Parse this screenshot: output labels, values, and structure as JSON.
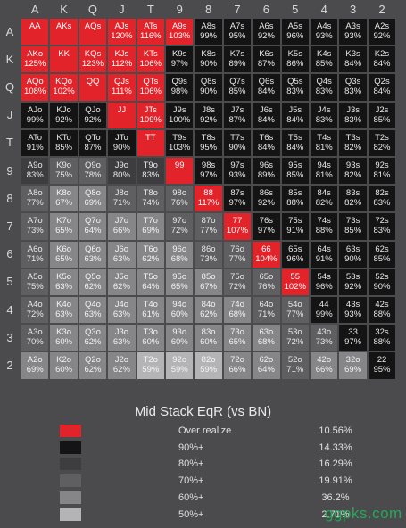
{
  "chart_data": {
    "type": "heatmap",
    "title": "Mid Stack EqR (vs BN)",
    "ranks": [
      "A",
      "K",
      "Q",
      "J",
      "T",
      "9",
      "8",
      "7",
      "6",
      "5",
      "4",
      "3",
      "2"
    ],
    "cells": [
      [
        [
          "AA",
          "",
          0
        ],
        [
          "AKs",
          "",
          0
        ],
        [
          "AQs",
          "",
          0
        ],
        [
          "AJs",
          "120%",
          0
        ],
        [
          "ATs",
          "116%",
          0
        ],
        [
          "A9s",
          "103%",
          0
        ],
        [
          "A8s",
          "99%",
          1
        ],
        [
          "A7s",
          "95%",
          1
        ],
        [
          "A6s",
          "92%",
          1
        ],
        [
          "A5s",
          "96%",
          1
        ],
        [
          "A4s",
          "93%",
          1
        ],
        [
          "A3s",
          "93%",
          1
        ],
        [
          "A2s",
          "92%",
          1
        ]
      ],
      [
        [
          "AKo",
          "125%",
          0
        ],
        [
          "KK",
          "",
          0
        ],
        [
          "KQs",
          "123%",
          0
        ],
        [
          "KJs",
          "112%",
          0
        ],
        [
          "KTs",
          "106%",
          0
        ],
        [
          "K9s",
          "97%",
          1
        ],
        [
          "K8s",
          "90%",
          1
        ],
        [
          "K7s",
          "89%",
          1
        ],
        [
          "K6s",
          "87%",
          1
        ],
        [
          "K5s",
          "86%",
          1
        ],
        [
          "K4s",
          "85%",
          1
        ],
        [
          "K3s",
          "84%",
          1
        ],
        [
          "K2s",
          "84%",
          1
        ]
      ],
      [
        [
          "AQo",
          "108%",
          0
        ],
        [
          "KQo",
          "102%",
          0
        ],
        [
          "QQ",
          "",
          0
        ],
        [
          "QJs",
          "111%",
          0
        ],
        [
          "QTs",
          "106%",
          0
        ],
        [
          "Q9s",
          "98%",
          1
        ],
        [
          "Q8s",
          "90%",
          1
        ],
        [
          "Q7s",
          "85%",
          1
        ],
        [
          "Q6s",
          "84%",
          1
        ],
        [
          "Q5s",
          "83%",
          1
        ],
        [
          "Q4s",
          "83%",
          1
        ],
        [
          "Q3s",
          "83%",
          1
        ],
        [
          "Q2s",
          "84%",
          1
        ]
      ],
      [
        [
          "AJo",
          "99%",
          1
        ],
        [
          "KJo",
          "92%",
          1
        ],
        [
          "QJo",
          "92%",
          1
        ],
        [
          "JJ",
          "",
          0
        ],
        [
          "JTs",
          "109%",
          0
        ],
        [
          "J9s",
          "100%",
          1
        ],
        [
          "J8s",
          "92%",
          1
        ],
        [
          "J7s",
          "87%",
          1
        ],
        [
          "J6s",
          "84%",
          1
        ],
        [
          "J5s",
          "84%",
          1
        ],
        [
          "J4s",
          "83%",
          1
        ],
        [
          "J3s",
          "83%",
          1
        ],
        [
          "J2s",
          "85%",
          1
        ]
      ],
      [
        [
          "ATo",
          "91%",
          1
        ],
        [
          "KTo",
          "85%",
          1
        ],
        [
          "QTo",
          "87%",
          1
        ],
        [
          "JTo",
          "90%",
          1
        ],
        [
          "TT",
          "",
          0
        ],
        [
          "T9s",
          "103%",
          1
        ],
        [
          "T8s",
          "95%",
          1
        ],
        [
          "T7s",
          "90%",
          1
        ],
        [
          "T6s",
          "84%",
          1
        ],
        [
          "T5s",
          "84%",
          1
        ],
        [
          "T4s",
          "81%",
          1
        ],
        [
          "T3s",
          "82%",
          1
        ],
        [
          "T2s",
          "82%",
          1
        ]
      ],
      [
        [
          "A9o",
          "83%",
          2
        ],
        [
          "K9o",
          "75%",
          3
        ],
        [
          "Q9o",
          "78%",
          3
        ],
        [
          "J9o",
          "80%",
          2
        ],
        [
          "T9o",
          "83%",
          2
        ],
        [
          "99",
          "",
          0
        ],
        [
          "98s",
          "97%",
          1
        ],
        [
          "97s",
          "93%",
          1
        ],
        [
          "96s",
          "89%",
          1
        ],
        [
          "95s",
          "85%",
          1
        ],
        [
          "94s",
          "81%",
          1
        ],
        [
          "93s",
          "82%",
          1
        ],
        [
          "92s",
          "81%",
          1
        ]
      ],
      [
        [
          "A8o",
          "77%",
          3
        ],
        [
          "K8o",
          "67%",
          4
        ],
        [
          "Q8o",
          "69%",
          4
        ],
        [
          "J8o",
          "71%",
          3
        ],
        [
          "T8o",
          "74%",
          3
        ],
        [
          "98o",
          "76%",
          3
        ],
        [
          "88",
          "117%",
          0
        ],
        [
          "87s",
          "97%",
          1
        ],
        [
          "86s",
          "92%",
          1
        ],
        [
          "85s",
          "88%",
          1
        ],
        [
          "84s",
          "82%",
          1
        ],
        [
          "83s",
          "82%",
          1
        ],
        [
          "82s",
          "83%",
          1
        ]
      ],
      [
        [
          "A7o",
          "73%",
          3
        ],
        [
          "K7o",
          "65%",
          4
        ],
        [
          "Q7o",
          "64%",
          4
        ],
        [
          "J7o",
          "66%",
          4
        ],
        [
          "T7o",
          "69%",
          4
        ],
        [
          "97o",
          "72%",
          3
        ],
        [
          "87o",
          "77%",
          3
        ],
        [
          "77",
          "107%",
          0
        ],
        [
          "76s",
          "97%",
          1
        ],
        [
          "75s",
          "91%",
          1
        ],
        [
          "74s",
          "88%",
          1
        ],
        [
          "73s",
          "85%",
          1
        ],
        [
          "72s",
          "83%",
          1
        ]
      ],
      [
        [
          "A6o",
          "71%",
          3
        ],
        [
          "K6o",
          "65%",
          4
        ],
        [
          "Q6o",
          "63%",
          4
        ],
        [
          "J6o",
          "63%",
          4
        ],
        [
          "T6o",
          "62%",
          4
        ],
        [
          "96o",
          "68%",
          4
        ],
        [
          "86o",
          "73%",
          3
        ],
        [
          "76o",
          "77%",
          3
        ],
        [
          "66",
          "104%",
          0
        ],
        [
          "65s",
          "96%",
          1
        ],
        [
          "64s",
          "91%",
          1
        ],
        [
          "63s",
          "90%",
          1
        ],
        [
          "62s",
          "85%",
          1
        ]
      ],
      [
        [
          "A5o",
          "75%",
          3
        ],
        [
          "K5o",
          "63%",
          4
        ],
        [
          "Q5o",
          "62%",
          4
        ],
        [
          "J5o",
          "62%",
          4
        ],
        [
          "T5o",
          "64%",
          4
        ],
        [
          "95o",
          "65%",
          4
        ],
        [
          "85o",
          "67%",
          4
        ],
        [
          "75o",
          "72%",
          3
        ],
        [
          "65o",
          "76%",
          3
        ],
        [
          "55",
          "102%",
          0
        ],
        [
          "54s",
          "96%",
          1
        ],
        [
          "53s",
          "92%",
          1
        ],
        [
          "52s",
          "90%",
          1
        ]
      ],
      [
        [
          "A4o",
          "72%",
          3
        ],
        [
          "K4o",
          "63%",
          4
        ],
        [
          "Q4o",
          "63%",
          4
        ],
        [
          "J4o",
          "63%",
          4
        ],
        [
          "T4o",
          "61%",
          4
        ],
        [
          "94o",
          "60%",
          4
        ],
        [
          "84o",
          "62%",
          4
        ],
        [
          "74o",
          "68%",
          4
        ],
        [
          "64o",
          "71%",
          3
        ],
        [
          "54o",
          "77%",
          3
        ],
        [
          "44",
          "99%",
          1
        ],
        [
          "43s",
          "93%",
          1
        ],
        [
          "42s",
          "88%",
          1
        ]
      ],
      [
        [
          "A3o",
          "70%",
          3
        ],
        [
          "K3o",
          "60%",
          4
        ],
        [
          "Q3o",
          "62%",
          4
        ],
        [
          "J3o",
          "63%",
          4
        ],
        [
          "T3o",
          "60%",
          4
        ],
        [
          "93o",
          "60%",
          4
        ],
        [
          "83o",
          "60%",
          4
        ],
        [
          "73o",
          "65%",
          4
        ],
        [
          "63o",
          "68%",
          4
        ],
        [
          "53o",
          "72%",
          3
        ],
        [
          "43o",
          "73%",
          3
        ],
        [
          "33",
          "97%",
          1
        ],
        [
          "32s",
          "88%",
          1
        ]
      ],
      [
        [
          "A2o",
          "69%",
          4
        ],
        [
          "K2o",
          "60%",
          4
        ],
        [
          "Q2o",
          "62%",
          4
        ],
        [
          "J2o",
          "62%",
          4
        ],
        [
          "T2o",
          "59%",
          5
        ],
        [
          "92o",
          "59%",
          5
        ],
        [
          "82o",
          "59%",
          5
        ],
        [
          "72o",
          "66%",
          4
        ],
        [
          "62o",
          "64%",
          4
        ],
        [
          "52o",
          "71%",
          3
        ],
        [
          "42o",
          "66%",
          4
        ],
        [
          "32o",
          "69%",
          4
        ],
        [
          "22",
          "95%",
          1
        ]
      ]
    ],
    "legend": [
      {
        "label": "Over realize",
        "value": "10.56%",
        "color": "#e2232a"
      },
      {
        "label": "90%+",
        "value": "14.33%",
        "color": "#141414"
      },
      {
        "label": "80%+",
        "value": "16.29%",
        "color": "#3d3d3f"
      },
      {
        "label": "70%+",
        "value": "19.91%",
        "color": "#5f5f62"
      },
      {
        "label": "60%+",
        "value": "36.2%",
        "color": "#868689"
      },
      {
        "label": "50%+",
        "value": "2.71%",
        "color": "#b4b4b7"
      }
    ]
  },
  "watermark": "ggpks.com"
}
